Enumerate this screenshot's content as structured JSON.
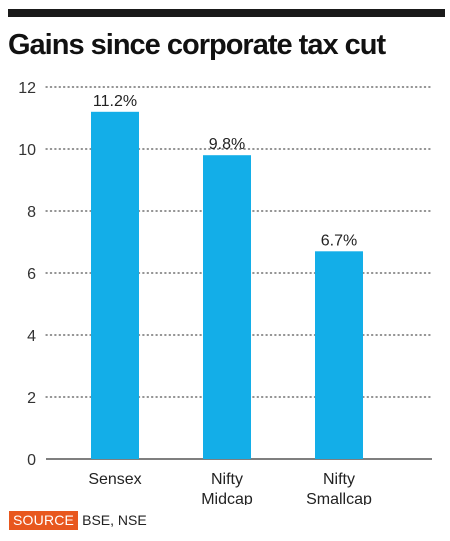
{
  "header": {
    "title": "Gains since corporate tax cut"
  },
  "chart_data": {
    "type": "bar",
    "title": "Gains since corporate tax cut",
    "categories": [
      [
        "Sensex"
      ],
      [
        "Nifty",
        "Midcap"
      ],
      [
        "Nifty",
        "Smallcap"
      ]
    ],
    "values": [
      11.2,
      9.8,
      6.7
    ],
    "data_labels": [
      "11.2%",
      "9.8%",
      "6.7%"
    ],
    "ylim": [
      0,
      12
    ],
    "yticks": [
      "0",
      "2",
      "4",
      "6",
      "8",
      "10",
      "12"
    ],
    "ytick_values": [
      0,
      2,
      4,
      6,
      8,
      10,
      12
    ],
    "grid": true,
    "bar_color": "#13aee8",
    "xlabel": "",
    "ylabel": ""
  },
  "footer": {
    "source_tag": "SOURCE",
    "source_text": "BSE, NSE",
    "source_tag_color": "#e8571e"
  }
}
